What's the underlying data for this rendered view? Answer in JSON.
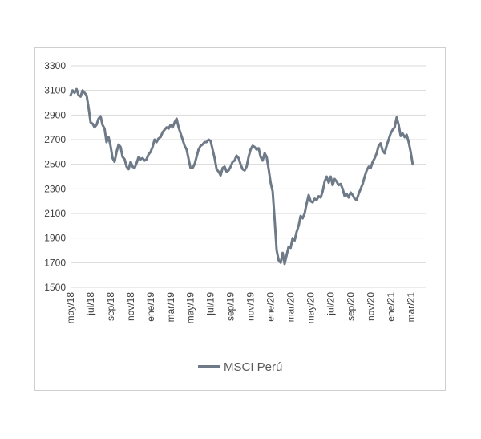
{
  "chart_data": {
    "type": "line",
    "title": "",
    "xlabel": "",
    "ylabel": "",
    "ylim": [
      1500,
      3300
    ],
    "yticks": [
      1500,
      1700,
      1900,
      2100,
      2300,
      2500,
      2700,
      2900,
      3100,
      3300
    ],
    "x_tick_labels": [
      "may/18",
      "jul/18",
      "sep/18",
      "nov/18",
      "ene/19",
      "mar/19",
      "may/19",
      "jul/19",
      "sep/19",
      "nov/19",
      "ene/20",
      "mar/20",
      "may/20",
      "jul/20",
      "sep/20",
      "nov/20",
      "ene/21",
      "mar/21"
    ],
    "x_range_months": [
      0,
      35.5
    ],
    "grid": true,
    "legend_position": "bottom-center",
    "series_color": "#6e7a87",
    "series": [
      {
        "name": "MSCI Perú",
        "points": [
          [
            0.0,
            3060
          ],
          [
            0.2,
            3100
          ],
          [
            0.4,
            3080
          ],
          [
            0.6,
            3110
          ],
          [
            0.8,
            3060
          ],
          [
            1.0,
            3050
          ],
          [
            1.2,
            3100
          ],
          [
            1.4,
            3080
          ],
          [
            1.6,
            3060
          ],
          [
            1.8,
            2960
          ],
          [
            2.0,
            2840
          ],
          [
            2.2,
            2830
          ],
          [
            2.4,
            2800
          ],
          [
            2.6,
            2820
          ],
          [
            2.8,
            2870
          ],
          [
            3.0,
            2890
          ],
          [
            3.2,
            2820
          ],
          [
            3.4,
            2790
          ],
          [
            3.6,
            2680
          ],
          [
            3.8,
            2720
          ],
          [
            4.0,
            2650
          ],
          [
            4.2,
            2550
          ],
          [
            4.4,
            2520
          ],
          [
            4.6,
            2600
          ],
          [
            4.8,
            2660
          ],
          [
            5.0,
            2640
          ],
          [
            5.2,
            2560
          ],
          [
            5.4,
            2540
          ],
          [
            5.6,
            2480
          ],
          [
            5.8,
            2460
          ],
          [
            6.0,
            2520
          ],
          [
            6.2,
            2480
          ],
          [
            6.4,
            2470
          ],
          [
            6.6,
            2510
          ],
          [
            6.8,
            2560
          ],
          [
            7.0,
            2540
          ],
          [
            7.2,
            2550
          ],
          [
            7.4,
            2530
          ],
          [
            7.6,
            2540
          ],
          [
            7.8,
            2580
          ],
          [
            8.0,
            2600
          ],
          [
            8.2,
            2640
          ],
          [
            8.4,
            2700
          ],
          [
            8.6,
            2680
          ],
          [
            8.8,
            2710
          ],
          [
            9.0,
            2720
          ],
          [
            9.2,
            2760
          ],
          [
            9.4,
            2780
          ],
          [
            9.6,
            2800
          ],
          [
            9.8,
            2790
          ],
          [
            10.0,
            2820
          ],
          [
            10.2,
            2800
          ],
          [
            10.4,
            2840
          ],
          [
            10.6,
            2870
          ],
          [
            10.8,
            2800
          ],
          [
            11.0,
            2750
          ],
          [
            11.2,
            2700
          ],
          [
            11.4,
            2650
          ],
          [
            11.6,
            2620
          ],
          [
            11.8,
            2540
          ],
          [
            12.0,
            2470
          ],
          [
            12.2,
            2470
          ],
          [
            12.4,
            2500
          ],
          [
            12.6,
            2560
          ],
          [
            12.8,
            2620
          ],
          [
            13.0,
            2650
          ],
          [
            13.2,
            2660
          ],
          [
            13.4,
            2680
          ],
          [
            13.6,
            2680
          ],
          [
            13.8,
            2700
          ],
          [
            14.0,
            2690
          ],
          [
            14.2,
            2620
          ],
          [
            14.4,
            2550
          ],
          [
            14.6,
            2460
          ],
          [
            14.8,
            2440
          ],
          [
            15.0,
            2410
          ],
          [
            15.2,
            2470
          ],
          [
            15.4,
            2480
          ],
          [
            15.6,
            2440
          ],
          [
            15.8,
            2450
          ],
          [
            16.0,
            2480
          ],
          [
            16.2,
            2520
          ],
          [
            16.4,
            2530
          ],
          [
            16.6,
            2570
          ],
          [
            16.8,
            2550
          ],
          [
            17.0,
            2500
          ],
          [
            17.2,
            2460
          ],
          [
            17.4,
            2450
          ],
          [
            17.6,
            2480
          ],
          [
            17.8,
            2560
          ],
          [
            18.0,
            2620
          ],
          [
            18.2,
            2650
          ],
          [
            18.4,
            2640
          ],
          [
            18.6,
            2620
          ],
          [
            18.8,
            2630
          ],
          [
            19.0,
            2560
          ],
          [
            19.2,
            2530
          ],
          [
            19.4,
            2590
          ],
          [
            19.6,
            2560
          ],
          [
            19.8,
            2460
          ],
          [
            20.0,
            2350
          ],
          [
            20.2,
            2280
          ],
          [
            20.4,
            2050
          ],
          [
            20.6,
            1800
          ],
          [
            20.8,
            1720
          ],
          [
            21.0,
            1700
          ],
          [
            21.2,
            1780
          ],
          [
            21.4,
            1690
          ],
          [
            21.6,
            1760
          ],
          [
            21.8,
            1830
          ],
          [
            22.0,
            1820
          ],
          [
            22.2,
            1900
          ],
          [
            22.4,
            1880
          ],
          [
            22.6,
            1950
          ],
          [
            22.8,
            2000
          ],
          [
            23.0,
            2080
          ],
          [
            23.2,
            2060
          ],
          [
            23.4,
            2100
          ],
          [
            23.6,
            2180
          ],
          [
            23.8,
            2250
          ],
          [
            24.0,
            2200
          ],
          [
            24.2,
            2190
          ],
          [
            24.4,
            2220
          ],
          [
            24.6,
            2210
          ],
          [
            24.8,
            2240
          ],
          [
            25.0,
            2230
          ],
          [
            25.2,
            2280
          ],
          [
            25.4,
            2360
          ],
          [
            25.6,
            2400
          ],
          [
            25.8,
            2350
          ],
          [
            26.0,
            2400
          ],
          [
            26.2,
            2330
          ],
          [
            26.4,
            2380
          ],
          [
            26.6,
            2360
          ],
          [
            26.8,
            2330
          ],
          [
            27.0,
            2340
          ],
          [
            27.2,
            2300
          ],
          [
            27.4,
            2240
          ],
          [
            27.6,
            2260
          ],
          [
            27.8,
            2230
          ],
          [
            28.0,
            2270
          ],
          [
            28.2,
            2250
          ],
          [
            28.4,
            2220
          ],
          [
            28.6,
            2210
          ],
          [
            28.8,
            2260
          ],
          [
            29.0,
            2300
          ],
          [
            29.2,
            2340
          ],
          [
            29.4,
            2400
          ],
          [
            29.6,
            2450
          ],
          [
            29.8,
            2480
          ],
          [
            30.0,
            2470
          ],
          [
            30.2,
            2520
          ],
          [
            30.4,
            2550
          ],
          [
            30.6,
            2590
          ],
          [
            30.8,
            2650
          ],
          [
            31.0,
            2670
          ],
          [
            31.2,
            2610
          ],
          [
            31.4,
            2590
          ],
          [
            31.6,
            2650
          ],
          [
            31.8,
            2700
          ],
          [
            32.0,
            2750
          ],
          [
            32.2,
            2780
          ],
          [
            32.4,
            2800
          ],
          [
            32.6,
            2880
          ],
          [
            32.8,
            2820
          ],
          [
            33.0,
            2730
          ],
          [
            33.2,
            2750
          ],
          [
            33.4,
            2720
          ],
          [
            33.6,
            2740
          ],
          [
            33.8,
            2680
          ],
          [
            34.0,
            2600
          ],
          [
            34.2,
            2500
          ]
        ]
      }
    ]
  }
}
